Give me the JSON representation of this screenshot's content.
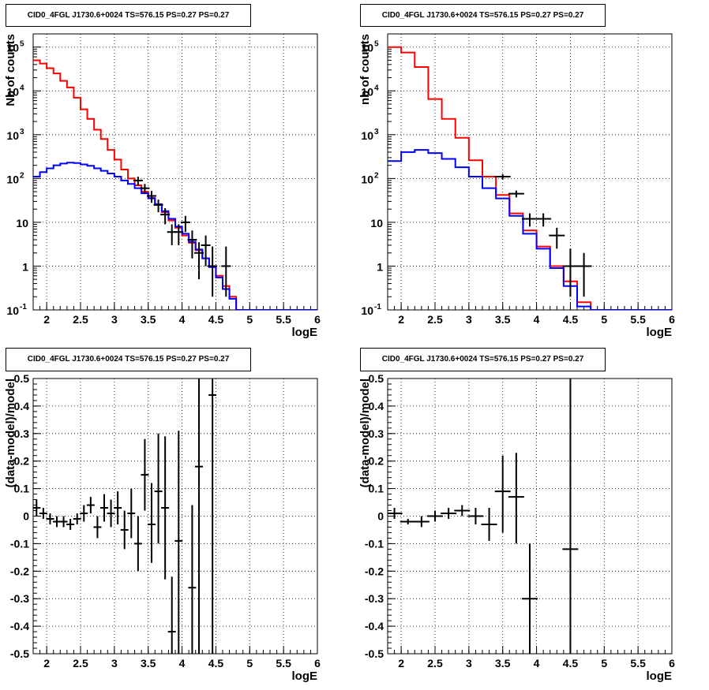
{
  "panels": [
    {
      "title": "CID0_4FGL J1730.6+0024 TS=576.15 PS=0.27 PS=0.27",
      "xlabel": "logE",
      "ylabel": "Nb of counts",
      "xticks": [
        "2",
        "2.5",
        "3",
        "3.5",
        "4",
        "4.5",
        "5",
        "5.5",
        "6"
      ],
      "yticks": [
        "10^-1",
        "1",
        "10",
        "10^2",
        "10^3",
        "10^4",
        "10^5"
      ]
    },
    {
      "title": "CID0_4FGL J1730.6+0024 TS=576.15 PS=0.27 PS=0.27",
      "xlabel": "logE",
      "ylabel": "nb of counts",
      "xticks": [
        "2",
        "2.5",
        "3",
        "3.5",
        "4",
        "4.5",
        "5",
        "5.5",
        "6"
      ],
      "yticks": [
        "10^-1",
        "1",
        "10",
        "10^2",
        "10^3",
        "10^4",
        "10^5"
      ]
    },
    {
      "title": "CID0_4FGL J1730.6+0024 TS=576.15 PS=0.27 PS=0.27",
      "xlabel": "logE",
      "ylabel": "(data-model)/model",
      "xticks": [
        "2",
        "2.5",
        "3",
        "3.5",
        "4",
        "4.5",
        "5",
        "5.5",
        "6"
      ],
      "yticks": [
        "-0.5",
        "-0.4",
        "-0.3",
        "-0.2",
        "-0.1",
        "0",
        "0.1",
        "0.2",
        "0.3",
        "0.4",
        "0.5"
      ]
    },
    {
      "title": "CID0_4FGL J1730.6+0024 TS=576.15 PS=0.27 PS=0.27",
      "xlabel": "logE",
      "ylabel": "(data-model)/model",
      "xticks": [
        "2",
        "2.5",
        "3",
        "3.5",
        "4",
        "4.5",
        "5",
        "5.5",
        "6"
      ],
      "yticks": [
        "-0.5",
        "-0.4",
        "-0.3",
        "-0.2",
        "-0.1",
        "0",
        "0.1",
        "0.2",
        "0.3",
        "0.4",
        "0.5"
      ]
    }
  ],
  "chart_data": [
    {
      "type": "line",
      "title": "CID0_4FGL J1730.6+0024 TS=576.15 PS=0.27 PS=0.27",
      "xlabel": "logE",
      "ylabel": "Nb of counts",
      "xlim": [
        1.8,
        6.0
      ],
      "ylim": [
        0.1,
        200000
      ],
      "yscale": "log",
      "grid": true,
      "bin_edges": [
        1.8,
        1.9,
        2.0,
        2.1,
        2.2,
        2.3,
        2.4,
        2.5,
        2.6,
        2.7,
        2.8,
        2.9,
        3.0,
        3.1,
        3.2,
        3.3,
        3.4,
        3.5,
        3.6,
        3.7,
        3.8,
        3.9,
        4.0,
        4.1,
        4.2,
        4.3,
        4.4,
        4.5,
        4.6,
        4.7,
        4.8,
        4.9,
        5.0,
        5.1,
        5.2,
        5.3,
        5.4,
        5.5,
        5.6,
        5.7,
        5.8,
        5.9,
        6.0
      ],
      "series": [
        {
          "color": "#ff0000",
          "style": "step",
          "values": [
            50000,
            42000,
            33000,
            25000,
            17000,
            12000,
            7000,
            3800,
            2300,
            1300,
            800,
            450,
            270,
            160,
            100,
            70,
            50,
            36,
            25,
            17,
            11,
            7.5,
            5,
            3.4,
            2.3,
            1.5,
            1.0,
            0.6,
            0.35,
            0.2,
            0.1,
            0.1,
            0.1,
            0.1,
            0.1,
            0.1,
            0.1,
            0.1,
            0.1,
            0.1,
            0.1,
            0.1
          ]
        },
        {
          "color": "#0000ff",
          "style": "step",
          "values": [
            110,
            140,
            170,
            200,
            220,
            230,
            225,
            210,
            195,
            170,
            150,
            130,
            110,
            90,
            75,
            60,
            46,
            35,
            26,
            18,
            12,
            8,
            5.5,
            3.6,
            2.4,
            1.5,
            0.95,
            0.55,
            0.3,
            0.18,
            0.1,
            0.1,
            0.1,
            0.1,
            0.1,
            0.1,
            0.1,
            0.1,
            0.1,
            0.1,
            0.1,
            0.1
          ]
        },
        {
          "color": "#000000",
          "style": "points",
          "x": [
            3.35,
            3.45,
            3.55,
            3.65,
            3.75,
            3.85,
            3.95,
            4.05,
            4.15,
            4.25,
            4.35,
            4.45,
            4.65
          ],
          "values": [
            90,
            60,
            40,
            25,
            15,
            6,
            6,
            10,
            4,
            2,
            3,
            1,
            1
          ],
          "err_lo": [
            70,
            45,
            28,
            17,
            9,
            3,
            3,
            6,
            1.5,
            0.5,
            1,
            0.2,
            0.2
          ],
          "err_hi": [
            110,
            75,
            52,
            33,
            21,
            9,
            9,
            14,
            6.5,
            3.5,
            5,
            2.8,
            2.8
          ]
        }
      ]
    },
    {
      "type": "line",
      "title": "CID0_4FGL J1730.6+0024 TS=576.15 PS=0.27 PS=0.27",
      "xlabel": "logE",
      "ylabel": "nb of counts",
      "xlim": [
        1.8,
        6.0
      ],
      "ylim": [
        0.1,
        200000
      ],
      "yscale": "log",
      "grid": true,
      "bin_edges": [
        1.8,
        2.0,
        2.2,
        2.4,
        2.6,
        2.8,
        3.0,
        3.2,
        3.4,
        3.6,
        3.8,
        4.0,
        4.2,
        4.4,
        4.6,
        4.8,
        5.0,
        5.2,
        5.4,
        5.6,
        5.8,
        6.0
      ],
      "series": [
        {
          "color": "#ff0000",
          "style": "step",
          "values": [
            100000,
            75000,
            35000,
            6500,
            2300,
            850,
            260,
            110,
            42,
            16,
            6.5,
            2.8,
            1.0,
            0.45,
            0.15,
            0.1,
            0.1,
            0.1,
            0.1,
            0.1,
            0.1
          ]
        },
        {
          "color": "#0000ff",
          "style": "step",
          "values": [
            250,
            400,
            450,
            380,
            280,
            180,
            110,
            60,
            35,
            14,
            5.5,
            2.5,
            0.9,
            0.35,
            0.12,
            0.1,
            0.1,
            0.1,
            0.1,
            0.1,
            0.1
          ]
        },
        {
          "color": "#000000",
          "style": "points",
          "x": [
            3.5,
            3.7,
            3.9,
            4.1,
            4.3,
            4.5,
            4.7
          ],
          "values": [
            110,
            45,
            12,
            12,
            5,
            1,
            1
          ],
          "err_lo": [
            95,
            37,
            8,
            8,
            2.5,
            0.2,
            0.2
          ],
          "err_hi": [
            125,
            53,
            16,
            16,
            7.5,
            2.5,
            2.0
          ]
        }
      ]
    },
    {
      "type": "scatter",
      "title": "CID0_4FGL J1730.6+0024 TS=576.15 PS=0.27 PS=0.27",
      "xlabel": "logE",
      "ylabel": "(data-model)/model",
      "xlim": [
        1.8,
        6.0
      ],
      "ylim": [
        -0.5,
        0.5
      ],
      "grid": true,
      "x": [
        1.85,
        1.95,
        2.05,
        2.15,
        2.25,
        2.35,
        2.45,
        2.55,
        2.65,
        2.75,
        2.85,
        2.95,
        3.05,
        3.15,
        3.25,
        3.35,
        3.45,
        3.55,
        3.65,
        3.75,
        3.85,
        3.95,
        4.15,
        4.25,
        4.45
      ],
      "y": [
        0.03,
        0.01,
        -0.01,
        -0.02,
        -0.02,
        -0.03,
        -0.01,
        0.01,
        0.04,
        -0.04,
        0.03,
        0.01,
        0.03,
        -0.05,
        0.01,
        -0.1,
        0.15,
        -0.03,
        0.09,
        0.03,
        -0.42,
        -0.09,
        -0.26,
        0.18,
        0.44
      ],
      "err_lo": [
        0.0,
        -0.01,
        -0.03,
        -0.04,
        -0.04,
        -0.05,
        -0.03,
        -0.02,
        0.01,
        -0.08,
        -0.02,
        -0.04,
        -0.03,
        -0.12,
        -0.08,
        -0.2,
        0.02,
        -0.17,
        -0.1,
        -0.23,
        -0.5,
        -0.5,
        -0.5,
        -0.5,
        -0.5
      ],
      "err_hi": [
        0.06,
        0.03,
        0.01,
        0.0,
        0.0,
        -0.01,
        0.01,
        0.04,
        0.07,
        0.0,
        0.08,
        0.06,
        0.09,
        0.02,
        0.1,
        0.0,
        0.28,
        0.12,
        0.3,
        0.29,
        -0.22,
        0.31,
        0.04,
        0.5,
        0.5
      ],
      "color": "#000000"
    },
    {
      "type": "scatter",
      "title": "CID0_4FGL J1730.6+0024 TS=576.15 PS=0.27 PS=0.27",
      "xlabel": "logE",
      "ylabel": "(data-model)/model",
      "xlim": [
        1.8,
        6.0
      ],
      "ylim": [
        -0.5,
        0.5
      ],
      "grid": true,
      "x": [
        1.9,
        2.1,
        2.3,
        2.5,
        2.7,
        2.9,
        3.1,
        3.3,
        3.5,
        3.7,
        3.9,
        4.5
      ],
      "y": [
        0.01,
        -0.02,
        -0.02,
        0.0,
        0.01,
        0.02,
        0.0,
        -0.03,
        0.09,
        0.07,
        -0.3,
        -0.12
      ],
      "err_lo": [
        -0.01,
        -0.03,
        -0.04,
        -0.02,
        -0.01,
        0.0,
        -0.03,
        -0.09,
        -0.06,
        -0.1,
        -0.5,
        -0.5
      ],
      "err_hi": [
        0.03,
        -0.01,
        0.0,
        0.02,
        0.03,
        0.04,
        0.03,
        0.03,
        0.22,
        0.23,
        -0.1,
        0.5
      ],
      "color": "#000000"
    }
  ]
}
